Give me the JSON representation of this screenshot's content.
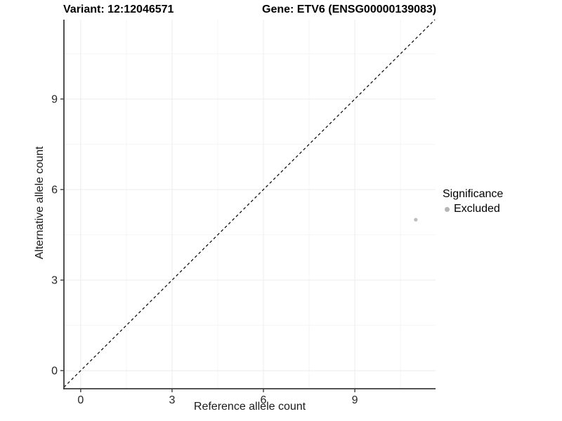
{
  "titles": {
    "variant": "Variant: 12:12046571",
    "gene": "Gene: ETV6 (ENSG00000139083)"
  },
  "chart_data": {
    "type": "scatter",
    "title": "Variant: 12:12046571   Gene: ETV6 (ENSG00000139083)",
    "xlabel": "Reference allele count",
    "ylabel": "Alternative allele count",
    "xlim": [
      -0.55,
      11.65
    ],
    "ylim": [
      -0.6,
      11.63
    ],
    "xticks": [
      0,
      3,
      6,
      9
    ],
    "yticks": [
      0,
      3,
      6,
      9
    ],
    "minor_xticks": [
      1.5,
      4.5,
      7.5,
      10.5
    ],
    "minor_yticks": [
      1.5,
      4.5,
      7.5,
      10.5
    ],
    "grid": true,
    "legend_position": "right",
    "series": [
      {
        "name": "Excluded",
        "color": "#bebebe",
        "points": [
          {
            "x": 11,
            "y": 5
          }
        ]
      }
    ],
    "reference_line": {
      "equation": "y = x",
      "style": "dashed",
      "color": "#000000"
    }
  },
  "legend": {
    "title": "Significance",
    "items": [
      {
        "label": "Excluded",
        "color": "#b5b5b5"
      }
    ]
  },
  "colors": {
    "background": "#ffffff",
    "axis_line": "#3d3d3d",
    "tick_label": "#262626",
    "grid_major": "#ececec",
    "grid_minor": "#f5f5f5"
  }
}
